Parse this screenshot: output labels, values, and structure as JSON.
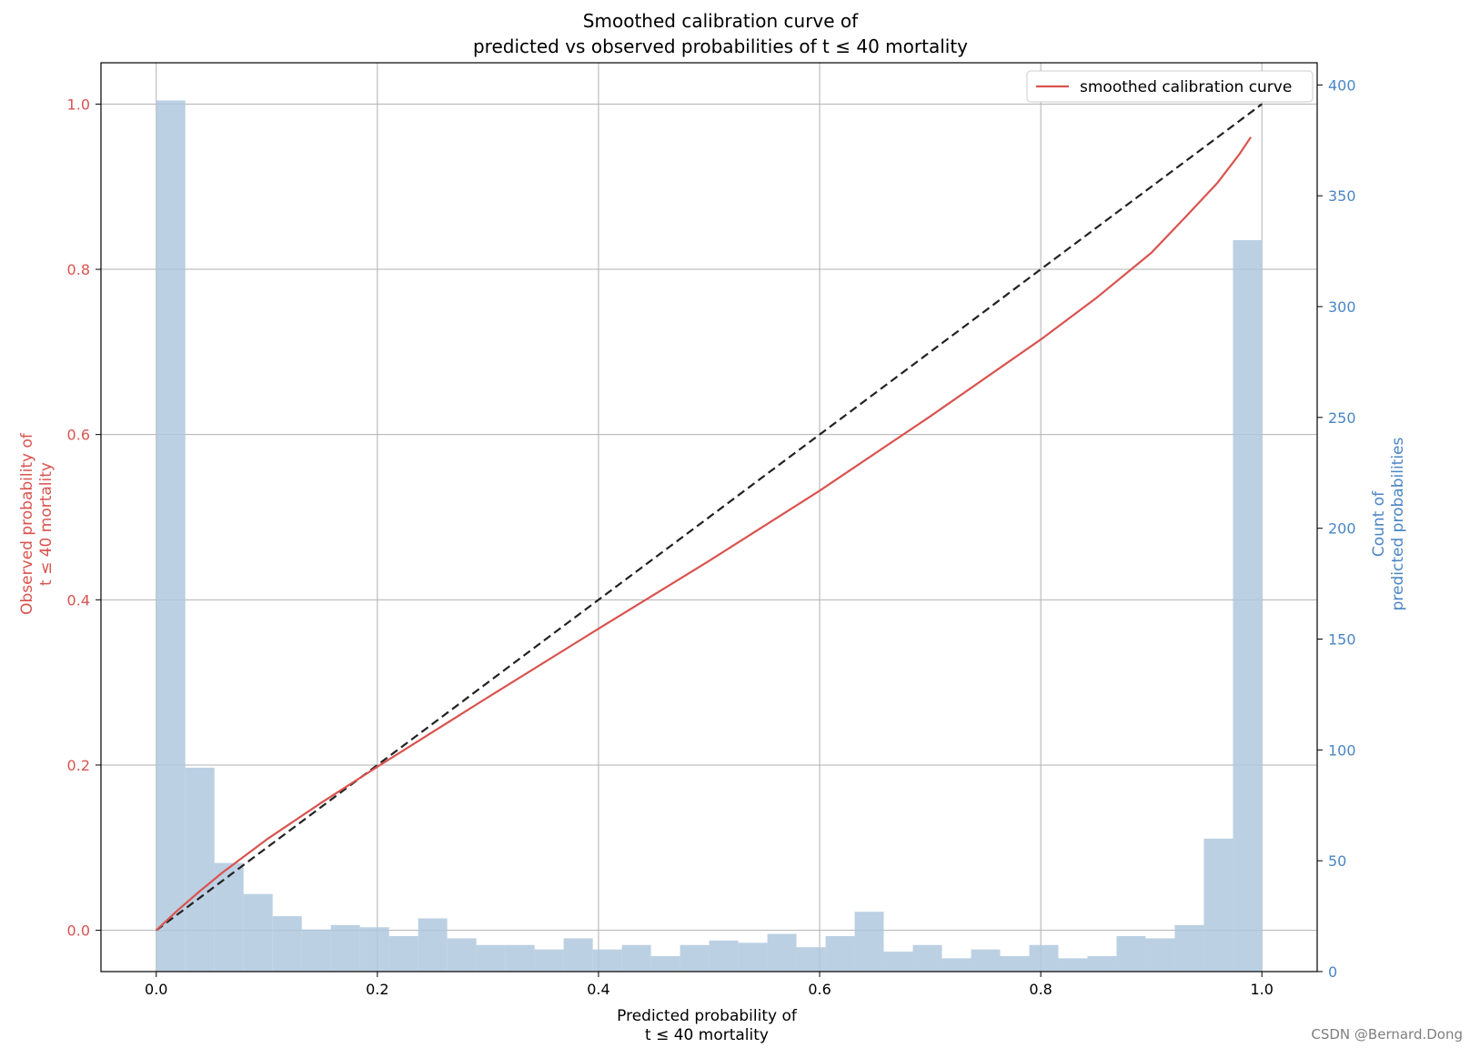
{
  "chart_data": {
    "type": "bar",
    "title_lines": [
      "Smoothed calibration curve of",
      "predicted vs observed probabilities of t ≤ 40 mortality"
    ],
    "xlabel_lines": [
      "Predicted probability of",
      "t ≤ 40 mortality"
    ],
    "ylabel_left_lines": [
      "Observed probability of",
      "t ≤ 40 mortality"
    ],
    "ylabel_right_lines": [
      "Count of",
      "predicted probabilities"
    ],
    "xlim": [
      -0.05,
      1.05
    ],
    "ylim_left": [
      -0.05,
      1.05
    ],
    "ylim_right": [
      0,
      410
    ],
    "xticks": [
      0.0,
      0.2,
      0.4,
      0.6,
      0.8,
      1.0
    ],
    "xtick_labels": [
      "0.0",
      "0.2",
      "0.4",
      "0.6",
      "0.8",
      "1.0"
    ],
    "yticks_left": [
      0.0,
      0.2,
      0.4,
      0.6,
      0.8,
      1.0
    ],
    "ytick_labels_left": [
      "0.0",
      "0.2",
      "0.4",
      "0.6",
      "0.8",
      "1.0"
    ],
    "yticks_right": [
      0,
      50,
      100,
      150,
      200,
      250,
      300,
      350,
      400
    ],
    "ytick_labels_right": [
      "0",
      "50",
      "100",
      "150",
      "200",
      "250",
      "300",
      "350",
      "400"
    ],
    "grid": true,
    "legend": {
      "placement": "top-right",
      "entries": [
        "smoothed calibration curve"
      ]
    },
    "colors": {
      "left_axis": "#d9534f",
      "right_axis": "#4a86c5",
      "curve": "#d9534f",
      "diagonal": "#222222",
      "histogram": "#b0c8de",
      "grid": "#b0b0b0"
    },
    "histogram": {
      "bin_edges_start": 0.0,
      "bin_width": 0.02632,
      "counts": [
        393,
        92,
        49,
        35,
        25,
        19,
        21,
        20,
        16,
        24,
        15,
        12,
        12,
        10,
        15,
        10,
        12,
        7,
        12,
        14,
        13,
        17,
        11,
        16,
        27,
        9,
        12,
        6,
        10,
        7,
        12,
        6,
        7,
        16,
        15,
        21,
        60,
        330
      ]
    },
    "diagonal": {
      "x": [
        0.0,
        1.0
      ],
      "y": [
        0.0,
        1.0
      ],
      "style": "dashed"
    },
    "series": [
      {
        "name": "smoothed calibration curve",
        "x": [
          0.0,
          0.02,
          0.04,
          0.06,
          0.08,
          0.1,
          0.15,
          0.2,
          0.3,
          0.4,
          0.5,
          0.6,
          0.7,
          0.8,
          0.85,
          0.9,
          0.93,
          0.96,
          0.98,
          0.99
        ],
        "y": [
          0.0,
          0.025,
          0.048,
          0.07,
          0.09,
          0.11,
          0.155,
          0.198,
          0.282,
          0.365,
          0.447,
          0.532,
          0.622,
          0.715,
          0.765,
          0.82,
          0.862,
          0.905,
          0.94,
          0.96
        ]
      }
    ]
  },
  "watermark": "CSDN @Bernard.Dong"
}
